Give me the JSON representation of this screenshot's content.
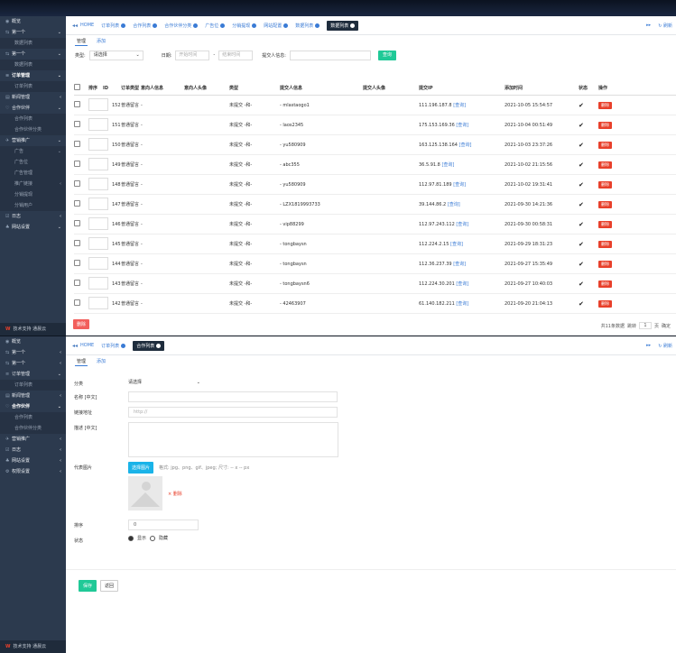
{
  "panel1": {
    "sidebar": [
      {
        "label": "概览",
        "icon": "dashboard-icon",
        "type": "grp"
      },
      {
        "label": "第一个",
        "icon": "link-icon",
        "type": "grp",
        "caret": "⌄"
      },
      {
        "label": "数据列表",
        "type": "sub"
      },
      {
        "label": "第一个",
        "icon": "link-icon",
        "type": "grp",
        "caret": "⌄"
      },
      {
        "label": "数据列表",
        "type": "sub"
      },
      {
        "label": "订单管理",
        "icon": "list-icon",
        "type": "grp act",
        "caret": "⌄"
      },
      {
        "label": "订单列表",
        "type": "sub"
      },
      {
        "label": "新闻管理",
        "icon": "news-icon",
        "type": "grp",
        "caret": "‹"
      },
      {
        "label": "合作伙伴",
        "icon": "handshake-icon",
        "type": "grp",
        "caret": "⌄"
      },
      {
        "label": "合作列表",
        "type": "sub"
      },
      {
        "label": "合作伙伴分类",
        "type": "sub"
      },
      {
        "label": "营销推广",
        "icon": "promo-icon",
        "type": "grp",
        "caret": "⌄"
      },
      {
        "label": "广告",
        "type": "sub",
        "caret": "⌄"
      },
      {
        "label": "广告位",
        "type": "sub"
      },
      {
        "label": "广告管理",
        "type": "sub"
      },
      {
        "label": "推广链接",
        "type": "sub",
        "caret": "‹"
      },
      {
        "label": "分销提现",
        "type": "sub"
      },
      {
        "label": "分销用户",
        "type": "sub"
      },
      {
        "label": "日志",
        "icon": "log-icon",
        "type": "grp",
        "caret": "‹"
      },
      {
        "label": "网站设置",
        "icon": "settings-icon",
        "type": "grp",
        "caret": "⌄"
      }
    ],
    "footer": "技术支持 通晨云",
    "tabs": [
      {
        "label": "HOME",
        "x": false
      },
      {
        "label": "订单列表",
        "x": true
      },
      {
        "label": "合作列表",
        "x": true
      },
      {
        "label": "合作伙伴分类",
        "x": true
      },
      {
        "label": "广告位",
        "x": true
      },
      {
        "label": "分销提现",
        "x": true
      },
      {
        "label": "网站配置",
        "x": true
      },
      {
        "label": "数据列表",
        "x": true
      },
      {
        "label": "数据列表",
        "x": true,
        "active": true
      }
    ],
    "tab_right": [
      "刷新"
    ],
    "subtabs": [
      "管理",
      "添加"
    ],
    "filter": {
      "type_label": "类型:",
      "type_value": "请选择",
      "date_label": "日期:",
      "start_ph": "开始时间",
      "sep": "-",
      "end_ph": "结束时间",
      "user_label": "提交人信息:",
      "search_btn": "查询"
    },
    "columns": [
      "排序",
      "ID",
      "订单类型",
      "意向人信息",
      "意向人头像",
      "类型",
      "提交人信息",
      "提交人头像",
      "提交IP",
      "添加时间",
      "状态",
      "操作"
    ],
    "rows": [
      {
        "id": "152",
        "otype": "普通留言",
        "intent": "-",
        "type": "未提交 -和-",
        "user": "- mlastaogo1",
        "ip": "111.196.187.8",
        "query": "[查询]",
        "time": "2021-10-05 15:54:57"
      },
      {
        "id": "151",
        "otype": "普通留言",
        "intent": "-",
        "type": "未提交 -和-",
        "user": "- laos2345",
        "ip": "175.153.169.36",
        "query": "[查询]",
        "time": "2021-10-04 00:51:49"
      },
      {
        "id": "150",
        "otype": "普通留言",
        "intent": "-",
        "type": "未提交 -和-",
        "user": "- yu580909",
        "ip": "163.125.138.164",
        "query": "[查询]",
        "time": "2021-10-03 23:37:26"
      },
      {
        "id": "149",
        "otype": "普通留言",
        "intent": "-",
        "type": "未提交 -和-",
        "user": "- abc355",
        "ip": "36.5.91.8",
        "query": "[查询]",
        "time": "2021-10-02 21:15:56"
      },
      {
        "id": "148",
        "otype": "普通留言",
        "intent": "-",
        "type": "未提交 -和-",
        "user": "- yu580909",
        "ip": "112.97.81.189",
        "query": "[查询]",
        "time": "2021-10-02 19:31:41"
      },
      {
        "id": "147",
        "otype": "普通留言",
        "intent": "-",
        "type": "未提交 -和-",
        "user": "- LZX1819993733",
        "ip": "39.144.86.2",
        "query": "[查询]",
        "time": "2021-09-30 14:21:36"
      },
      {
        "id": "146",
        "otype": "普通留言",
        "intent": "-",
        "type": "未提交 -和-",
        "user": "- vip88299",
        "ip": "112.97.243.112",
        "query": "[查询]",
        "time": "2021-09-30 00:58:31"
      },
      {
        "id": "145",
        "otype": "普通留言",
        "intent": "-",
        "type": "未提交 -和-",
        "user": "- tongbaysn",
        "ip": "112.224.2.15",
        "query": "[查询]",
        "time": "2021-09-29 18:31:23"
      },
      {
        "id": "144",
        "otype": "普通留言",
        "intent": "-",
        "type": "未提交 -和-",
        "user": "- tongbaysn",
        "ip": "112.36.237.39",
        "query": "[查询]",
        "time": "2021-09-27 15:35:49"
      },
      {
        "id": "143",
        "otype": "普通留言",
        "intent": "-",
        "type": "未提交 -和-",
        "user": "- tongbaysn6",
        "ip": "112.224.30.201",
        "query": "[查询]",
        "time": "2021-09-27 10:40:03"
      },
      {
        "id": "142",
        "otype": "普通留言",
        "intent": "-",
        "type": "未提交 -和-",
        "user": "- 42463907",
        "ip": "61.140.182.211",
        "query": "[查询]",
        "time": "2021-09-20 21:04:13"
      }
    ],
    "status_icon": "✔",
    "del_label": "删除",
    "bulk_delete": "删除",
    "pager": {
      "total": "共11条数据",
      "page_label": "跳转",
      "page": "1",
      "unit": "页",
      "go": "确定"
    }
  },
  "panel2": {
    "sidebar": [
      {
        "label": "概览",
        "icon": "dashboard-icon",
        "type": "grp"
      },
      {
        "label": "第一个",
        "icon": "link-icon",
        "type": "grp",
        "caret": "‹"
      },
      {
        "label": "第一个",
        "icon": "link-icon",
        "type": "grp",
        "caret": "‹"
      },
      {
        "label": "订单管理",
        "icon": "list-icon",
        "type": "grp",
        "caret": "⌄"
      },
      {
        "label": "订单列表",
        "type": "sub"
      },
      {
        "label": "新闻管理",
        "icon": "news-icon",
        "type": "grp",
        "caret": "‹"
      },
      {
        "label": "合作伙伴",
        "icon": "handshake-icon",
        "type": "grp act",
        "caret": "⌄"
      },
      {
        "label": "合作列表",
        "type": "sub"
      },
      {
        "label": "合作伙伴分类",
        "type": "sub"
      },
      {
        "label": "营销推广",
        "icon": "promo-icon",
        "type": "grp",
        "caret": "‹"
      },
      {
        "label": "日志",
        "icon": "log-icon",
        "type": "grp",
        "caret": "‹"
      },
      {
        "label": "网站设置",
        "icon": "settings-icon",
        "type": "grp",
        "caret": "‹"
      },
      {
        "label": "权限设置",
        "icon": "lock-icon",
        "type": "grp",
        "caret": "‹"
      }
    ],
    "footer": "技术支持 通晨云",
    "tabs": [
      {
        "label": "HOME",
        "x": false
      },
      {
        "label": "订单列表",
        "x": true
      },
      {
        "label": "合作列表",
        "x": true,
        "active": true
      }
    ],
    "tab_right": [
      "刷新"
    ],
    "subtabs": [
      "管理",
      "添加"
    ],
    "form": {
      "cat_label": "分类",
      "cat_value": "请选择",
      "name_label": "名称 [中文]",
      "url_label": "链接地址",
      "url_ph": "http://",
      "desc_label": "描述 [中文]",
      "img_label": "代表图片",
      "upload_btn": "选择图片",
      "img_hint": "格式: jpg、png、gif、jpeg; 尺寸: -- x -- px",
      "remove": "× 删除",
      "order_label": "排序",
      "order_value": "0",
      "status_label": "状态",
      "status_show": "显示",
      "status_hide": "隐藏"
    },
    "save": "保存",
    "back": "返回"
  }
}
